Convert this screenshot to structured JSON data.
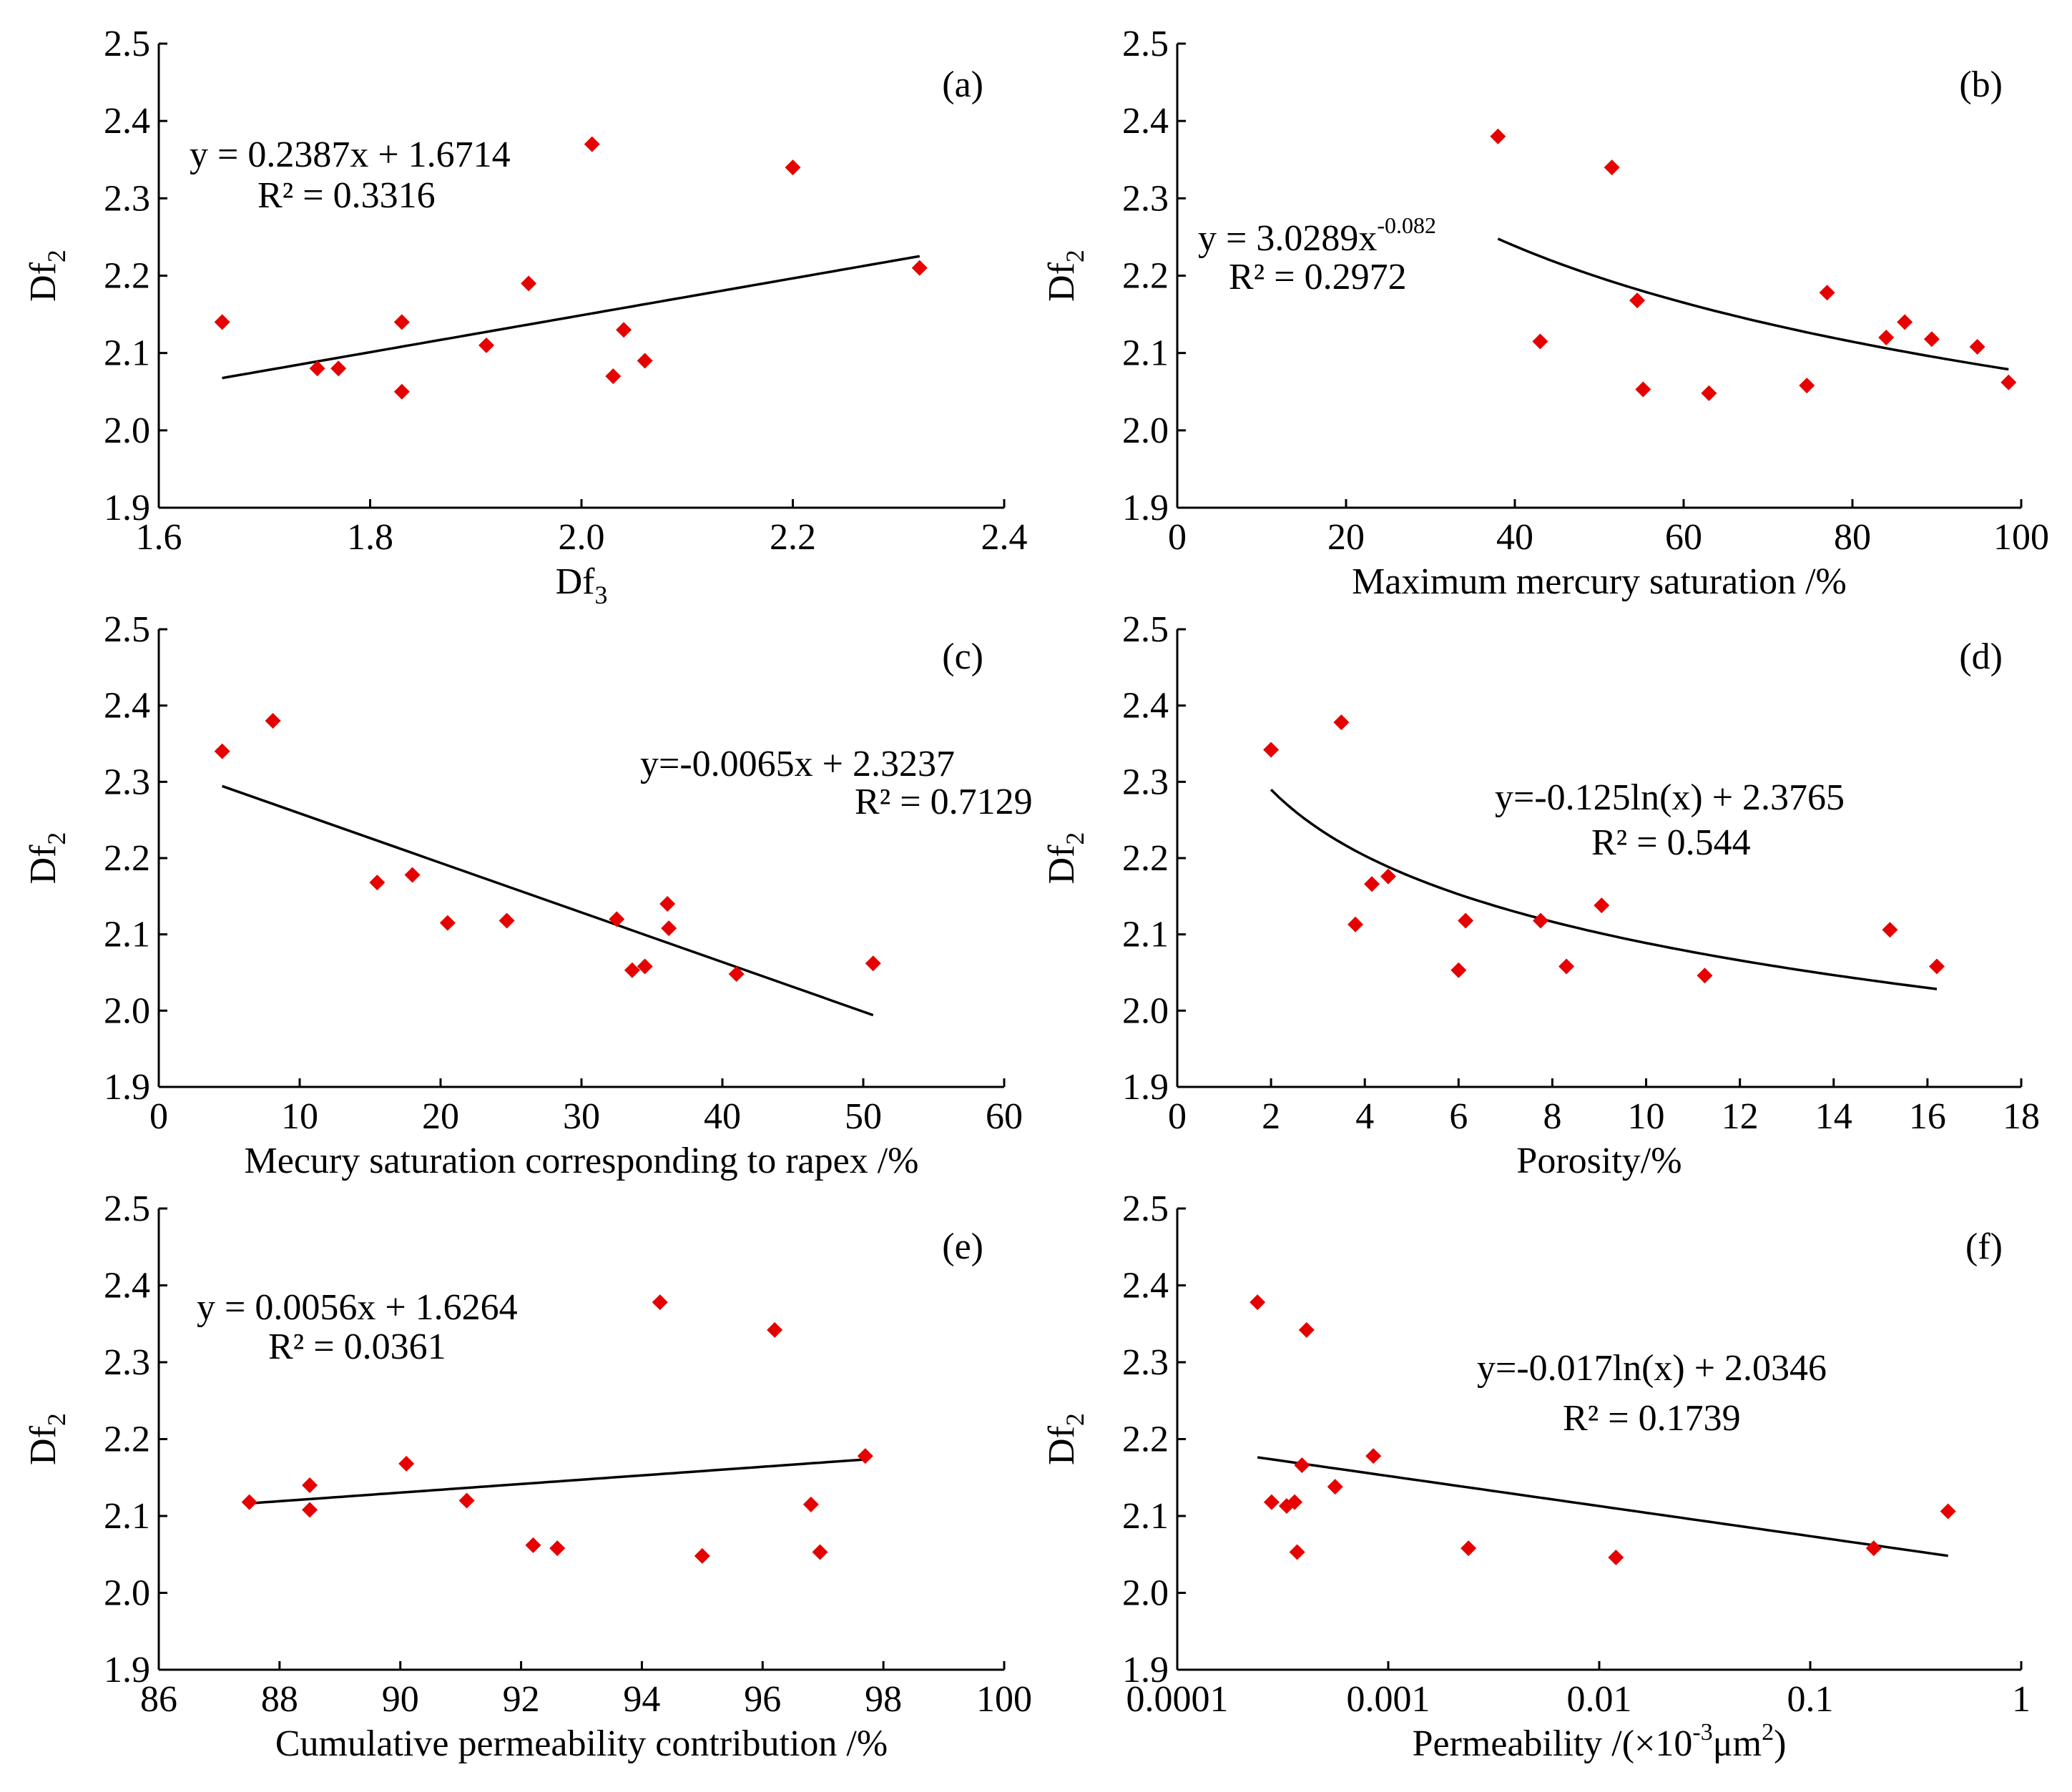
{
  "chart_data": [
    {
      "panel": "(a)",
      "type": "scatter",
      "xlabel": "Df3",
      "ylabel": "Df2",
      "xlim": [
        1.6,
        2.4
      ],
      "xticks": [
        1.6,
        1.8,
        2.0,
        2.2,
        2.4
      ],
      "xtick_labels": [
        "1.6",
        "1.8",
        "2.0",
        "2.2",
        "2.4"
      ],
      "ylim": [
        1.9,
        2.5
      ],
      "yticks": [
        1.9,
        2.0,
        2.1,
        2.2,
        2.3,
        2.4,
        2.5
      ],
      "ytick_labels": [
        "1.9",
        "2.0",
        "2.1",
        "2.2",
        "2.3",
        "2.4",
        "2.5"
      ],
      "equation": "y = 0.2387x + 1.6714",
      "r2": "R² = 0.3316",
      "fit": {
        "kind": "linear",
        "a": 0.2387,
        "b": 1.6714,
        "x_range": [
          1.66,
          2.32
        ]
      },
      "points": [
        [
          1.66,
          2.14
        ],
        [
          1.75,
          2.08
        ],
        [
          1.77,
          2.08
        ],
        [
          1.83,
          2.14
        ],
        [
          1.83,
          2.05
        ],
        [
          1.91,
          2.11
        ],
        [
          1.95,
          2.19
        ],
        [
          2.01,
          2.37
        ],
        [
          2.03,
          2.07
        ],
        [
          2.04,
          2.13
        ],
        [
          2.06,
          2.09
        ],
        [
          2.2,
          2.34
        ],
        [
          2.32,
          2.21
        ]
      ]
    },
    {
      "panel": "(b)",
      "type": "scatter",
      "xlabel": "Maximum mercury saturation /%",
      "ylabel": "Df2",
      "xlim": [
        0,
        100
      ],
      "xticks": [
        0,
        20,
        40,
        60,
        80,
        100
      ],
      "xtick_labels": [
        "0",
        "20",
        "40",
        "60",
        "80",
        "100"
      ],
      "ylim": [
        1.9,
        2.5
      ],
      "yticks": [
        1.9,
        2.0,
        2.1,
        2.2,
        2.3,
        2.4,
        2.5
      ],
      "ytick_labels": [
        "1.9",
        "2.0",
        "2.1",
        "2.2",
        "2.3",
        "2.4",
        "2.5"
      ],
      "equation": "y = 3.0289x",
      "equation_sup": "-0.082",
      "r2": "R² = 0.2972",
      "fit": {
        "kind": "power",
        "a": 3.0289,
        "b": -0.082,
        "x_range": [
          38,
          98.5
        ]
      },
      "points": [
        [
          38,
          2.38
        ],
        [
          43,
          2.115
        ],
        [
          51.5,
          2.34
        ],
        [
          54.5,
          2.168
        ],
        [
          55.2,
          2.053
        ],
        [
          63,
          2.048
        ],
        [
          74.6,
          2.058
        ],
        [
          77,
          2.178
        ],
        [
          84,
          2.12
        ],
        [
          86.2,
          2.14
        ],
        [
          89.4,
          2.118
        ],
        [
          94.8,
          2.108
        ],
        [
          98.5,
          2.062
        ]
      ]
    },
    {
      "panel": "(c)",
      "type": "scatter",
      "xlabel": "Mecury saturation corresponding to rapex /%",
      "ylabel": "Df2",
      "xlim": [
        0,
        60
      ],
      "xticks": [
        0,
        10,
        20,
        30,
        40,
        50,
        60
      ],
      "xtick_labels": [
        "0",
        "10",
        "20",
        "30",
        "40",
        "50",
        "60"
      ],
      "ylim": [
        1.9,
        2.5
      ],
      "yticks": [
        1.9,
        2.0,
        2.1,
        2.2,
        2.3,
        2.4,
        2.5
      ],
      "ytick_labels": [
        "1.9",
        "2.0",
        "2.1",
        "2.2",
        "2.3",
        "2.4",
        "2.5"
      ],
      "equation": "y=-0.0065x + 2.3237",
      "r2": "R² = 0.7129",
      "fit": {
        "kind": "linear",
        "a": -0.0065,
        "b": 2.3237,
        "x_range": [
          4.5,
          50.7
        ]
      },
      "points": [
        [
          4.5,
          2.34
        ],
        [
          8.1,
          2.38
        ],
        [
          15.5,
          2.168
        ],
        [
          18,
          2.178
        ],
        [
          20.5,
          2.115
        ],
        [
          24.7,
          2.118
        ],
        [
          32.5,
          2.12
        ],
        [
          33.6,
          2.053
        ],
        [
          34.5,
          2.058
        ],
        [
          36.1,
          2.14
        ],
        [
          36.2,
          2.108
        ],
        [
          41,
          2.048
        ],
        [
          50.7,
          2.062
        ]
      ]
    },
    {
      "panel": "(d)",
      "type": "scatter",
      "xlabel": "Porosity/%",
      "ylabel": "Df2",
      "xlim": [
        0,
        18
      ],
      "xticks": [
        0,
        2,
        4,
        6,
        8,
        10,
        12,
        14,
        16,
        18
      ],
      "xtick_labels": [
        "0",
        "2",
        "4",
        "6",
        "8",
        "10",
        "12",
        "14",
        "16",
        "18"
      ],
      "ylim": [
        1.9,
        2.5
      ],
      "yticks": [
        1.9,
        2.0,
        2.1,
        2.2,
        2.3,
        2.4,
        2.5
      ],
      "ytick_labels": [
        "1.9",
        "2.0",
        "2.1",
        "2.2",
        "2.3",
        "2.4",
        "2.5"
      ],
      "equation": "y=-0.125ln(x) + 2.3765",
      "r2": "R² = 0.544",
      "fit": {
        "kind": "log",
        "a": -0.125,
        "b": 2.3765,
        "x_range": [
          2,
          16.2
        ]
      },
      "points": [
        [
          2,
          2.342
        ],
        [
          3.5,
          2.378
        ],
        [
          3.8,
          2.113
        ],
        [
          4.15,
          2.166
        ],
        [
          4.5,
          2.176
        ],
        [
          6,
          2.053
        ],
        [
          6.15,
          2.118
        ],
        [
          7.75,
          2.118
        ],
        [
          8.3,
          2.058
        ],
        [
          9.05,
          2.138
        ],
        [
          11.25,
          2.046
        ],
        [
          15.2,
          2.106
        ],
        [
          16.2,
          2.058
        ]
      ]
    },
    {
      "panel": "(e)",
      "type": "scatter",
      "xlabel": "Cumulative permeability contribution /%",
      "ylabel": "Df2",
      "xlim": [
        86,
        100
      ],
      "xticks": [
        86,
        88,
        90,
        92,
        94,
        96,
        98,
        100
      ],
      "xtick_labels": [
        "86",
        "88",
        "90",
        "92",
        "94",
        "96",
        "98",
        "100"
      ],
      "ylim": [
        1.9,
        2.5
      ],
      "yticks": [
        1.9,
        2.0,
        2.1,
        2.2,
        2.3,
        2.4,
        2.5
      ],
      "ytick_labels": [
        "1.9",
        "2.0",
        "2.1",
        "2.2",
        "2.3",
        "2.4",
        "2.5"
      ],
      "equation": "y = 0.0056x + 1.6264",
      "r2": "R² = 0.0361",
      "fit": {
        "kind": "linear",
        "a": 0.0056,
        "b": 1.6264,
        "x_range": [
          87.5,
          97.7
        ]
      },
      "points": [
        [
          87.5,
          2.118
        ],
        [
          88.5,
          2.14
        ],
        [
          88.5,
          2.108
        ],
        [
          90.1,
          2.168
        ],
        [
          91.1,
          2.12
        ],
        [
          92.2,
          2.062
        ],
        [
          92.6,
          2.058
        ],
        [
          94.3,
          2.378
        ],
        [
          95,
          2.048
        ],
        [
          96.2,
          2.342
        ],
        [
          96.8,
          2.115
        ],
        [
          96.95,
          2.053
        ],
        [
          97.7,
          2.178
        ]
      ]
    },
    {
      "panel": "(f)",
      "type": "scatter",
      "xscale": "log",
      "xlabel": "Permeability /(×10",
      "xlabel_sup": "-3",
      "xlabel_tail": "μm",
      "xlabel_sup2": "2",
      "xlabel_end": ")",
      "ylabel": "Df2",
      "xlim": [
        0.0001,
        1
      ],
      "xticks": [
        0.0001,
        0.001,
        0.01,
        0.1,
        1
      ],
      "xtick_labels": [
        "0.0001",
        "0.001",
        "0.01",
        "0.1",
        "1"
      ],
      "ylim": [
        1.9,
        2.5
      ],
      "yticks": [
        1.9,
        2.0,
        2.1,
        2.2,
        2.3,
        2.4,
        2.5
      ],
      "ytick_labels": [
        "1.9",
        "2.0",
        "2.1",
        "2.2",
        "2.3",
        "2.4",
        "2.5"
      ],
      "equation": "y=-0.017ln(x) + 2.0346",
      "r2": "R² = 0.1739",
      "fit": {
        "kind": "log",
        "a": -0.017,
        "b": 2.0346,
        "x_range": [
          0.00024,
          0.45
        ]
      },
      "points": [
        [
          0.00024,
          2.378
        ],
        [
          0.00028,
          2.118
        ],
        [
          0.00033,
          2.113
        ],
        [
          0.00036,
          2.118
        ],
        [
          0.00037,
          2.053
        ],
        [
          0.00039,
          2.166
        ],
        [
          0.00041,
          2.342
        ],
        [
          0.00056,
          2.138
        ],
        [
          0.00085,
          2.178
        ],
        [
          0.0024,
          2.058
        ],
        [
          0.012,
          2.046
        ],
        [
          0.2,
          2.058
        ],
        [
          0.45,
          2.106
        ]
      ]
    }
  ]
}
